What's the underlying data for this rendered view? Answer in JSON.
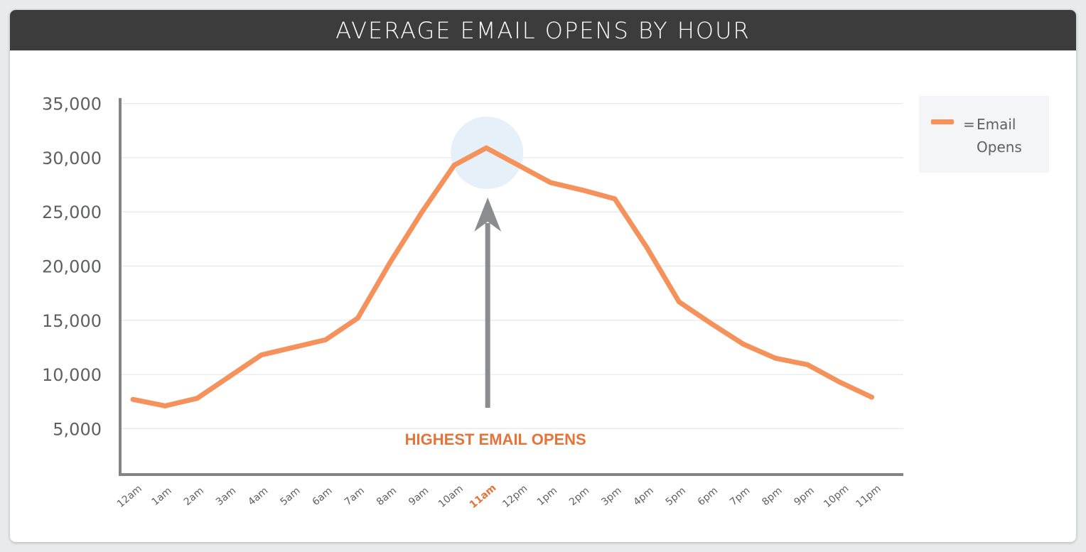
{
  "colors": {
    "line": "#f5915a",
    "highlight_label": "#e5743a",
    "axis": "#838485",
    "grid": "#e7e8e9",
    "tick_text": "#5f6061",
    "highlight_circle": "#e6f0f8",
    "arrow": "#8b8c8d"
  },
  "legend": {
    "symbol": "=",
    "label": "Email Opens"
  },
  "annotation": {
    "text": "HIGHEST EMAIL OPENS",
    "highlight_x": "11am",
    "icon": "up-arrow-icon"
  },
  "chart_data": {
    "type": "line",
    "title": "AVERAGE EMAIL OPENS BY HOUR",
    "xlabel": "",
    "ylabel": "",
    "categories": [
      "12am",
      "1am",
      "2am",
      "3am",
      "4am",
      "5am",
      "6am",
      "7am",
      "8am",
      "9am",
      "10am",
      "11am",
      "12pm",
      "1pm",
      "2pm",
      "3pm",
      "4pm",
      "5pm",
      "6pm",
      "7pm",
      "8pm",
      "9pm",
      "10pm",
      "11pm"
    ],
    "series": [
      {
        "name": "Email Opens",
        "values": [
          7700,
          7100,
          7800,
          9800,
          11800,
          12500,
          13200,
          15200,
          20300,
          25000,
          29300,
          30900,
          29300,
          27700,
          27000,
          26200,
          21700,
          16700,
          14700,
          12800,
          11500,
          10900,
          9300,
          7900
        ]
      }
    ],
    "yticks": [
      5000,
      10000,
      15000,
      20000,
      25000,
      30000,
      35000
    ],
    "ytick_labels": [
      "5,000",
      "10,000",
      "15,000",
      "20,000",
      "25,000",
      "30,000",
      "35,000"
    ],
    "ylim": [
      0,
      35000
    ],
    "grid": true,
    "legend_position": "right"
  }
}
